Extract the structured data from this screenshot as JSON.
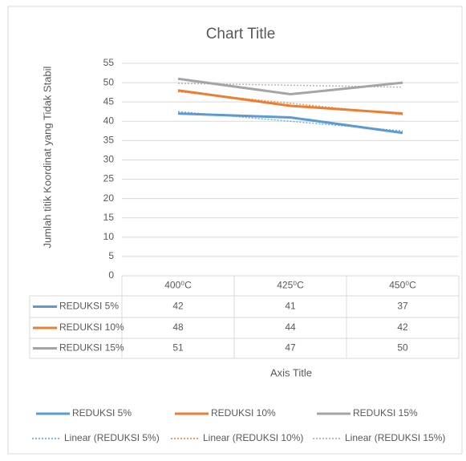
{
  "chart_data": {
    "type": "line",
    "title": "Chart Title",
    "y_label": "Jumlah titik Koordinat yang Tidak Stabil",
    "x_label": "Axis Title",
    "categories": [
      "400⁰C",
      "425⁰C",
      "450⁰C"
    ],
    "series": [
      {
        "name": "REDUKSI 5%",
        "color": "#5b9bd5",
        "values": [
          42,
          41,
          37
        ],
        "trendline": {
          "type": "linear",
          "name": "Linear (REDUKSI 5%)"
        }
      },
      {
        "name": "REDUKSI 10%",
        "color": "#ed7d31",
        "values": [
          48,
          44,
          42
        ],
        "trendline": {
          "type": "linear",
          "name": "Linear (REDUKSI 10%)"
        }
      },
      {
        "name": "REDUKSI 15%",
        "color": "#a5a5a5",
        "values": [
          51,
          47,
          50
        ],
        "trendline": {
          "type": "linear",
          "name": "Linear (REDUKSI 15%)"
        }
      }
    ],
    "ylim": [
      0,
      55
    ],
    "yticks": [
      0,
      5,
      10,
      15,
      20,
      25,
      30,
      35,
      40,
      45,
      50,
      55
    ],
    "grid": true,
    "data_table": true
  }
}
